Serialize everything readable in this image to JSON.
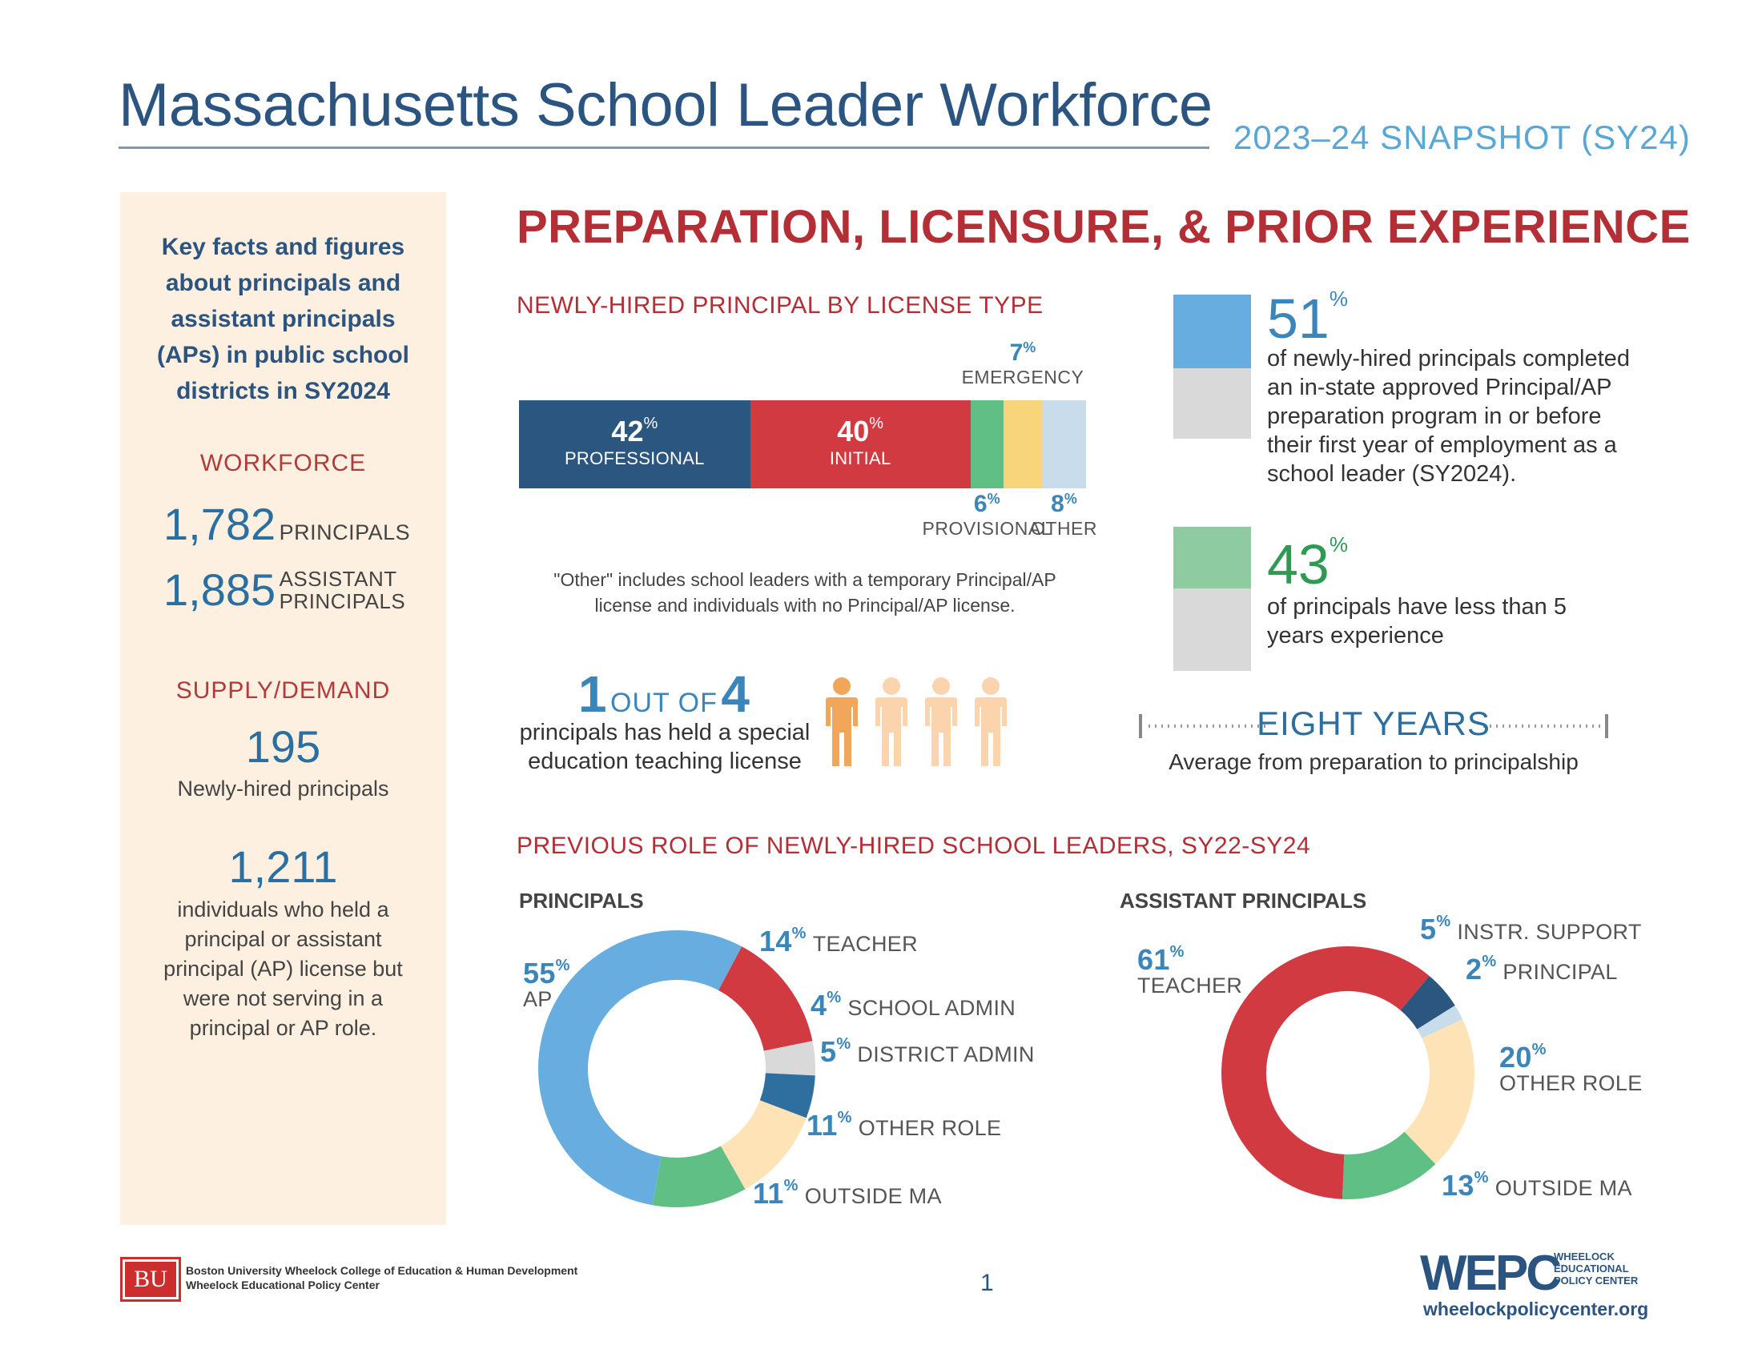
{
  "header": {
    "title": "Massachusetts School Leader Workforce",
    "snapshot": "2023–24 SNAPSHOT (SY24)"
  },
  "sidebar": {
    "intro": [
      "Key facts and figures",
      "about principals and",
      "assistant principals",
      "(APs) in public school",
      "districts in SY2024"
    ],
    "workforce_heading": "WORKFORCE",
    "principals_count": "1,782",
    "principals_label": "PRINCIPALS",
    "ap_count": "1,885",
    "ap_label_1": "ASSISTANT",
    "ap_label_2": "PRINCIPALS",
    "supply_heading": "SUPPLY/DEMAND",
    "newly_hired_count": "195",
    "newly_hired_label": "Newly-hired principals",
    "license_holders_count": "1,211",
    "license_holders_text": [
      "individuals who held a",
      "principal or assistant",
      "principal (AP) license but",
      "were not serving in a",
      "principal or AP role."
    ]
  },
  "main": {
    "section_title": "PREPARATION, LICENSURE, & PRIOR EXPERIENCE",
    "license_title": "NEWLY-HIRED PRINCIPAL BY LICENSE TYPE",
    "license_note_1": "\"Other\" includes school leaders with a temporary Principal/AP",
    "license_note_2": "license and individuals with no Principal/AP license.",
    "one_of_four_num1": "1",
    "one_of_four_mid": "OUT OF",
    "one_of_four_num2": "4",
    "one_of_four_text_1": "principals has held a special",
    "one_of_four_text_2": "education teaching license",
    "stat1_value": "51",
    "stat1_text": [
      "of newly-hired principals completed",
      "an in-state approved Principal/AP",
      "preparation program in or before",
      "their first year of employment as a",
      "school leader (SY2024)."
    ],
    "stat2_value": "43",
    "stat2_text": [
      "of principals have less than 5",
      "years experience"
    ],
    "eight_years": "EIGHT YEARS",
    "eight_years_sub": "Average from preparation to principalship",
    "prev_role_title": "PREVIOUS ROLE OF NEWLY-HIRED SCHOOL LEADERS, SY22-SY24",
    "principals_head": "PRINCIPALS",
    "aps_head": "ASSISTANT PRINCIPALS",
    "pct": "%"
  },
  "chart_data": [
    {
      "type": "bar",
      "title": "NEWLY-HIRED PRINCIPAL BY LICENSE TYPE",
      "orientation": "stacked-horizontal",
      "categories": [
        "PROFESSIONAL",
        "INITIAL",
        "PROVISIONAL",
        "EMERGENCY",
        "OTHER"
      ],
      "values": [
        42,
        40,
        6,
        7,
        8
      ],
      "colors": [
        "#2a5680",
        "#d23a41",
        "#5fbf85",
        "#f8d57a",
        "#c9dcec"
      ]
    },
    {
      "type": "pie",
      "title": "PRINCIPALS",
      "categories": [
        "AP",
        "TEACHER",
        "SCHOOL ADMIN",
        "DISTRICT ADMIN",
        "OTHER ROLE",
        "OUTSIDE MA"
      ],
      "values": [
        55,
        14,
        4,
        5,
        11,
        11
      ],
      "colors": [
        "#67ade0",
        "#d23a41",
        "#d9d9d9",
        "#2f6f9f",
        "#fde3b5",
        "#5fbf85"
      ]
    },
    {
      "type": "pie",
      "title": "ASSISTANT PRINCIPALS",
      "categories": [
        "INSTR. SUPPORT",
        "PRINCIPAL",
        "OTHER ROLE",
        "OUTSIDE MA",
        "TEACHER"
      ],
      "values": [
        5,
        2,
        20,
        13,
        61
      ],
      "colors": [
        "#2a5680",
        "#c9dcec",
        "#fde3b5",
        "#5fbf85",
        "#d23a41"
      ]
    },
    {
      "type": "bar",
      "title": "",
      "categories": [
        "completed in-state approved program",
        "less than 5 years experience"
      ],
      "values": [
        51,
        43
      ],
      "colors": [
        "#67ade0",
        "#8fcba1"
      ]
    }
  ],
  "footer": {
    "bu_logo": "BU",
    "bu_line1": "Boston University Wheelock College of Education & Human Development",
    "bu_line2": "Wheelock Educational Policy Center",
    "page_number": "1",
    "wepc_logo": "WEPC",
    "wepc_name": [
      "WHEELOCK",
      "EDUCATIONAL",
      "POLICY CENTER"
    ],
    "wepc_url": "wheelockpolicycenter.org"
  }
}
